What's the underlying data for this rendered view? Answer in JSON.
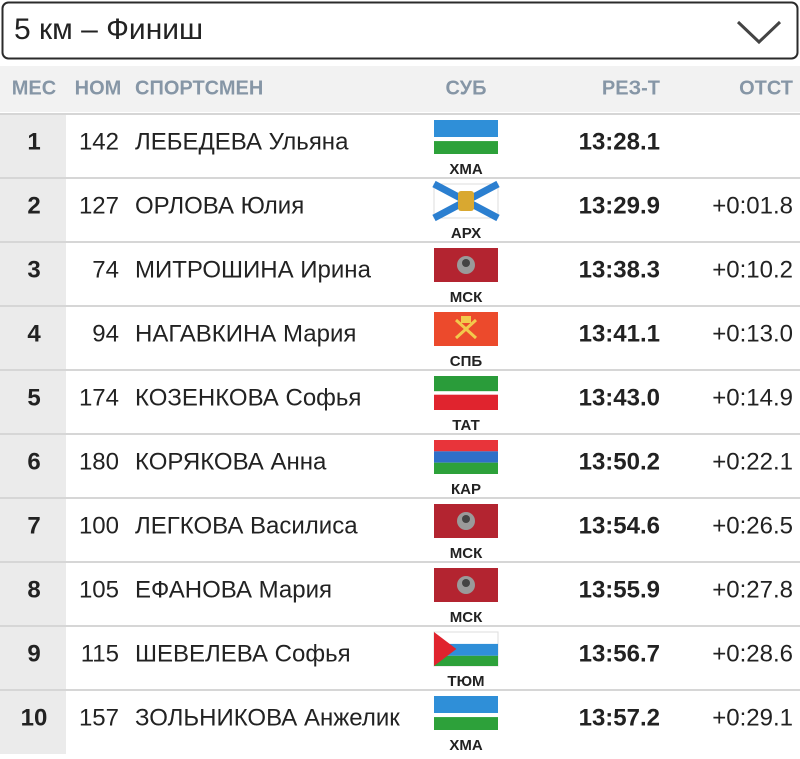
{
  "header": {
    "title": "5 км – Финиш"
  },
  "table": {
    "columns": [
      "МЕС",
      "НОМ",
      "СПОРТСМЕН",
      "СУБ",
      "РЕЗ-Т",
      "ОТСТ"
    ],
    "rows": [
      {
        "place": "1",
        "number": "142",
        "name": "ЛЕБЕДЕВА Ульяна",
        "region": "ХМА",
        "result": "13:28.1"
      },
      {
        "place": "2",
        "number": "127",
        "name": "ОРЛОВА Юлия",
        "region": "АРХ",
        "result": "13:29.9",
        "gap": "+0:01.8"
      },
      {
        "place": "3",
        "number": "74",
        "name": "МИТРОШИНА Ирина",
        "region": "МСК",
        "result": "13:38.3",
        "gap": "+0:10.2"
      },
      {
        "place": "4",
        "number": "94",
        "name": "НАГАВКИНА Мария",
        "region": "СПБ",
        "result": "13:41.1",
        "gap": "+0:13.0"
      },
      {
        "place": "5",
        "number": "174",
        "name": "КОЗЕНКОВА Софья",
        "region": "ТАТ",
        "result": "13:43.0",
        "gap": "+0:14.9"
      },
      {
        "place": "6",
        "number": "180",
        "name": "КОРЯКОВА Анна",
        "region": "КАР",
        "result": "13:50.2",
        "gap": "+0:22.1"
      },
      {
        "place": "7",
        "number": "100",
        "name": "ЛЕГКОВА Василиса",
        "region": "МСК",
        "result": "13:54.6",
        "gap": "+0:26.5"
      },
      {
        "place": "8",
        "number": "105",
        "name": "ЕФАНОВА Мария",
        "region": "МСК",
        "result": "13:55.9",
        "gap": "+0:27.8"
      },
      {
        "place": "9",
        "number": "115",
        "name": "ШЕВЕЛЕВА Софья",
        "region": "ТЮМ",
        "result": "13:56.7",
        "gap": "+0:28.6"
      },
      {
        "place": "10",
        "number": "157",
        "name": "ЗОЛЬНИКОВА Анжелик",
        "region": "ХМА",
        "result": "13:57.2",
        "gap": "+0:29.1"
      }
    ]
  }
}
